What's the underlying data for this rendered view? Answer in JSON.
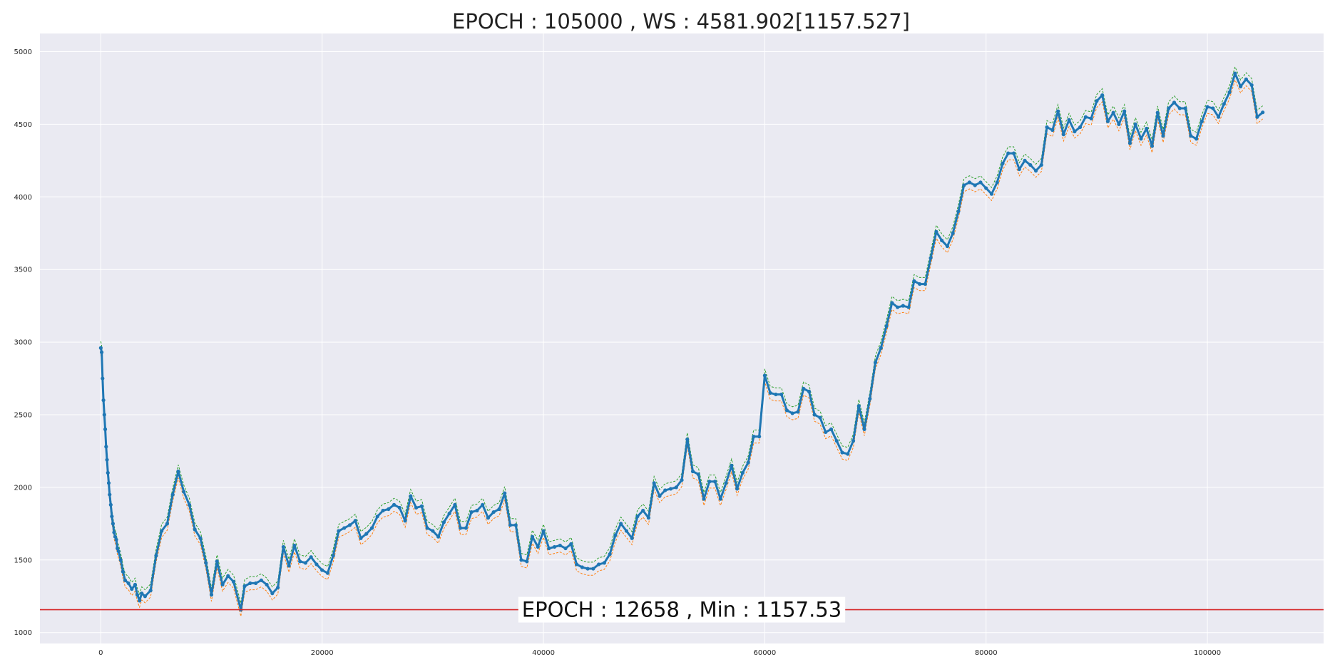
{
  "chart_data": {
    "type": "line",
    "title": "EPOCH : 105000 , WS : 4581.902[1157.527]",
    "xlabel": "",
    "ylabel": "",
    "xlim": [
      -5500,
      110500
    ],
    "ylim": [
      925,
      5125
    ],
    "grid": true,
    "x_ticks": [
      0,
      20000,
      40000,
      60000,
      80000,
      100000
    ],
    "y_ticks": [
      1000,
      1500,
      2000,
      2500,
      3000,
      3500,
      4000,
      4500,
      5000
    ],
    "colors": {
      "background": "#eaeaf2",
      "grid": "#ffffff",
      "main": "#1f77b4",
      "upper": "#2ca02c",
      "lower": "#ff7f0e",
      "hline": "#d62728"
    },
    "hline": {
      "y": 1157.53
    },
    "annotation": {
      "text": "EPOCH : 12658 , Min : 1157.53",
      "x": 52500,
      "y": 1157.53
    },
    "band_offset": 45,
    "series": [
      {
        "x": [
          0,
          80,
          160,
          240,
          320,
          400,
          480,
          560,
          640,
          720,
          800,
          900,
          1000,
          1100,
          1200,
          1300,
          1400,
          1500,
          1600,
          1800,
          2000,
          2200,
          2500,
          2800,
          3100,
          3300,
          3500,
          3700,
          4000,
          4500,
          5000,
          5500,
          6000,
          6500,
          7000,
          7500,
          8000,
          8500,
          9000,
          9500,
          10000,
          10500,
          11000,
          11500,
          12000,
          12658,
          13000,
          13500,
          14000,
          14500,
          15000,
          15500,
          16000,
          16500,
          17000,
          17500,
          18000,
          18500,
          19000,
          19500,
          20000,
          20500,
          21000,
          21500,
          22000,
          22500,
          23000,
          23500,
          24000,
          24500,
          25000,
          25500,
          26000,
          26500,
          27000,
          27500,
          28000,
          28500,
          29000,
          29500,
          30000,
          30500,
          31000,
          31500,
          32000,
          32500,
          33000,
          33500,
          34000,
          34500,
          35000,
          35500,
          36000,
          36500,
          37000,
          37500,
          38000,
          38500,
          39000,
          39500,
          40000,
          40500,
          41000,
          41500,
          42000,
          42500,
          43000,
          43500,
          44000,
          44500,
          45000,
          45500,
          46000,
          46500,
          47000,
          47500,
          48000,
          48500,
          49000,
          49500,
          50000,
          50500,
          51000,
          51500,
          52000,
          52500,
          53000,
          53500,
          54000,
          54500,
          55000,
          55500,
          56000,
          56500,
          57000,
          57500,
          58000,
          58500,
          59000,
          59500,
          60000,
          60500,
          61000,
          61500,
          62000,
          62500,
          63000,
          63500,
          64000,
          64500,
          65000,
          65500,
          66000,
          66500,
          67000,
          67500,
          68000,
          68500,
          69000,
          69500,
          70000,
          70500,
          71000,
          71500,
          72000,
          72500,
          73000,
          73500,
          74000,
          74500,
          75000,
          75500,
          76000,
          76500,
          77000,
          77500,
          78000,
          78500,
          79000,
          79500,
          80000,
          80500,
          81000,
          81500,
          82000,
          82500,
          83000,
          83500,
          84000,
          84500,
          85000,
          85500,
          86000,
          86500,
          87000,
          87500,
          88000,
          88500,
          89000,
          89500,
          90000,
          90500,
          91000,
          91500,
          92000,
          92500,
          93000,
          93500,
          94000,
          94500,
          95000,
          95500,
          96000,
          96500,
          97000,
          97500,
          98000,
          98500,
          99000,
          99500,
          100000,
          100500,
          101000,
          101500,
          102000,
          102500,
          103000,
          103500,
          104000,
          104500,
          105000
        ],
        "y": [
          2960,
          2930,
          2750,
          2600,
          2500,
          2400,
          2280,
          2190,
          2100,
          2030,
          1950,
          1880,
          1800,
          1750,
          1690,
          1660,
          1640,
          1580,
          1560,
          1500,
          1420,
          1360,
          1340,
          1300,
          1330,
          1260,
          1220,
          1270,
          1250,
          1290,
          1530,
          1700,
          1750,
          1950,
          2110,
          1970,
          1880,
          1710,
          1650,
          1480,
          1260,
          1490,
          1330,
          1390,
          1350,
          1157,
          1320,
          1340,
          1340,
          1360,
          1330,
          1270,
          1310,
          1590,
          1460,
          1600,
          1490,
          1480,
          1520,
          1470,
          1430,
          1410,
          1530,
          1700,
          1720,
          1740,
          1770,
          1650,
          1680,
          1720,
          1800,
          1840,
          1850,
          1880,
          1860,
          1770,
          1940,
          1860,
          1870,
          1720,
          1700,
          1660,
          1760,
          1820,
          1880,
          1720,
          1720,
          1830,
          1840,
          1880,
          1790,
          1830,
          1850,
          1960,
          1740,
          1740,
          1500,
          1490,
          1660,
          1590,
          1700,
          1580,
          1590,
          1600,
          1580,
          1610,
          1470,
          1450,
          1440,
          1440,
          1470,
          1480,
          1540,
          1670,
          1750,
          1700,
          1650,
          1800,
          1840,
          1790,
          2030,
          1940,
          1980,
          1990,
          2000,
          2050,
          2330,
          2110,
          2090,
          1920,
          2040,
          2040,
          1920,
          2030,
          2150,
          1990,
          2100,
          2170,
          2350,
          2350,
          2770,
          2650,
          2640,
          2640,
          2530,
          2510,
          2520,
          2680,
          2660,
          2500,
          2480,
          2380,
          2400,
          2320,
          2240,
          2230,
          2320,
          2560,
          2400,
          2610,
          2860,
          2960,
          3110,
          3270,
          3240,
          3250,
          3240,
          3420,
          3400,
          3400,
          3580,
          3760,
          3700,
          3660,
          3750,
          3900,
          4080,
          4100,
          4080,
          4100,
          4060,
          4020,
          4100,
          4230,
          4300,
          4300,
          4190,
          4250,
          4220,
          4180,
          4220,
          4480,
          4460,
          4590,
          4430,
          4530,
          4450,
          4480,
          4550,
          4540,
          4660,
          4700,
          4520,
          4580,
          4500,
          4590,
          4370,
          4500,
          4400,
          4470,
          4350,
          4580,
          4420,
          4610,
          4650,
          4610,
          4610,
          4420,
          4400,
          4520,
          4620,
          4610,
          4550,
          4640,
          4720,
          4850,
          4760,
          4810,
          4770,
          4550,
          4582
        ]
      }
    ]
  }
}
